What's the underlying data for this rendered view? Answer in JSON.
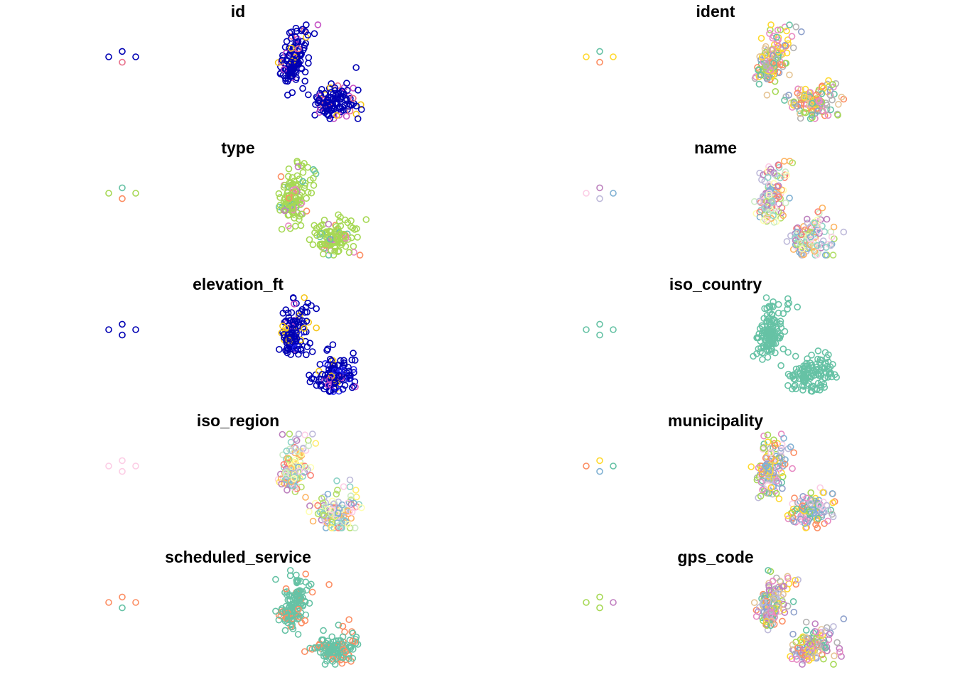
{
  "chart_data": [
    {
      "type": "scatter",
      "title": "id",
      "palette": [
        "#0000b3",
        "#f5c518",
        "#c44ec4",
        "#e8708a"
      ],
      "seed": 11,
      "outliers": [
        {
          "x": -122.5,
          "y": 37.2,
          "c": 0
        },
        {
          "x": -121.5,
          "y": 37.6,
          "c": 0
        },
        {
          "x": -120.5,
          "y": 37.2,
          "c": 0
        },
        {
          "x": -121.5,
          "y": 36.8,
          "c": 3
        }
      ]
    },
    {
      "type": "scatter",
      "title": "ident",
      "palette": [
        "#66c2a5",
        "#fc8d62",
        "#8da0cb",
        "#e78ac3",
        "#a6d854",
        "#ffd92f",
        "#e5c494",
        "#b3b3b3"
      ],
      "seed": 12,
      "outliers": [
        {
          "x": -122.5,
          "y": 37.2,
          "c": 5
        },
        {
          "x": -121.5,
          "y": 37.6,
          "c": 0
        },
        {
          "x": -120.5,
          "y": 37.2,
          "c": 5
        },
        {
          "x": -121.5,
          "y": 36.8,
          "c": 1
        }
      ]
    },
    {
      "type": "scatter",
      "title": "type",
      "palette": [
        "#a6d854",
        "#66c2a5",
        "#fc8d62",
        "#e78ac3",
        "#c07ec0"
      ],
      "seed": 13,
      "outliers": [
        {
          "x": -122.5,
          "y": 37.2,
          "c": 0
        },
        {
          "x": -121.5,
          "y": 37.6,
          "c": 1
        },
        {
          "x": -120.5,
          "y": 37.2,
          "c": 0
        },
        {
          "x": -121.5,
          "y": 36.8,
          "c": 2
        }
      ]
    },
    {
      "type": "scatter",
      "title": "name",
      "palette": [
        "#8dd3c7",
        "#ffffb3",
        "#bebada",
        "#fb8072",
        "#80b1d3",
        "#fdb462",
        "#b3de69",
        "#fccde5",
        "#bc80bd",
        "#ccebc5"
      ],
      "seed": 14,
      "outliers": [
        {
          "x": -122.5,
          "y": 37.2,
          "c": 7
        },
        {
          "x": -121.5,
          "y": 37.6,
          "c": 8
        },
        {
          "x": -120.5,
          "y": 37.2,
          "c": 4
        },
        {
          "x": -121.5,
          "y": 36.8,
          "c": 2
        }
      ]
    },
    {
      "type": "scatter",
      "title": "elevation_ft",
      "palette": [
        "#0000b3",
        "#2222ee",
        "#f5c518",
        "#c44ec4"
      ],
      "seed": 15,
      "outliers": [
        {
          "x": -122.5,
          "y": 37.2,
          "c": 0
        },
        {
          "x": -121.5,
          "y": 37.6,
          "c": 0
        },
        {
          "x": -120.5,
          "y": 37.2,
          "c": 0
        },
        {
          "x": -121.5,
          "y": 36.8,
          "c": 0
        }
      ]
    },
    {
      "type": "scatter",
      "title": "iso_country",
      "palette": [
        "#66c2a5"
      ],
      "seed": 16,
      "outliers": [
        {
          "x": -122.5,
          "y": 37.2,
          "c": 0
        },
        {
          "x": -121.5,
          "y": 37.6,
          "c": 0
        },
        {
          "x": -120.5,
          "y": 37.2,
          "c": 0
        },
        {
          "x": -121.5,
          "y": 36.8,
          "c": 0
        }
      ]
    },
    {
      "type": "scatter",
      "title": "iso_region",
      "palette": [
        "#fccde5",
        "#80b1d3",
        "#bc80bd",
        "#fb8072",
        "#ffed6f",
        "#ccebc5",
        "#fdb462",
        "#bebada",
        "#b3de69",
        "#8dd3c7",
        "#ffffb3"
      ],
      "seed": 17,
      "outliers": [
        {
          "x": -122.5,
          "y": 37.2,
          "c": 0
        },
        {
          "x": -121.5,
          "y": 37.6,
          "c": 0
        },
        {
          "x": -120.5,
          "y": 37.2,
          "c": 0
        },
        {
          "x": -121.5,
          "y": 36.8,
          "c": 0
        }
      ]
    },
    {
      "type": "scatter",
      "title": "municipality",
      "palette": [
        "#66c2a5",
        "#fc8d62",
        "#8da0cb",
        "#e78ac3",
        "#a6d854",
        "#ffd92f",
        "#fccde5",
        "#b3b3b3",
        "#80b1d3",
        "#bebada"
      ],
      "seed": 18,
      "outliers": [
        {
          "x": -122.5,
          "y": 37.2,
          "c": 1
        },
        {
          "x": -121.5,
          "y": 37.6,
          "c": 5
        },
        {
          "x": -120.5,
          "y": 37.2,
          "c": 0
        },
        {
          "x": -121.5,
          "y": 36.8,
          "c": 8
        }
      ]
    },
    {
      "type": "scatter",
      "title": "scheduled_service",
      "palette": [
        "#66c2a5",
        "#fc8d62"
      ],
      "seed": 19,
      "outliers": [
        {
          "x": -122.5,
          "y": 37.2,
          "c": 1
        },
        {
          "x": -121.5,
          "y": 37.6,
          "c": 1
        },
        {
          "x": -120.5,
          "y": 37.2,
          "c": 1
        },
        {
          "x": -121.5,
          "y": 36.8,
          "c": 0
        }
      ]
    },
    {
      "type": "scatter",
      "title": "gps_code",
      "palette": [
        "#fc8d62",
        "#66c2a5",
        "#8da0cb",
        "#e78ac3",
        "#a6d854",
        "#ffd92f",
        "#e5c494",
        "#b3b3b3",
        "#c07ec0",
        "#bebada"
      ],
      "seed": 20,
      "outliers": [
        {
          "x": -122.5,
          "y": 37.2,
          "c": 4
        },
        {
          "x": -121.5,
          "y": 37.6,
          "c": 4
        },
        {
          "x": -120.5,
          "y": 37.2,
          "c": 8
        },
        {
          "x": -121.5,
          "y": 36.8,
          "c": 4
        }
      ]
    }
  ]
}
